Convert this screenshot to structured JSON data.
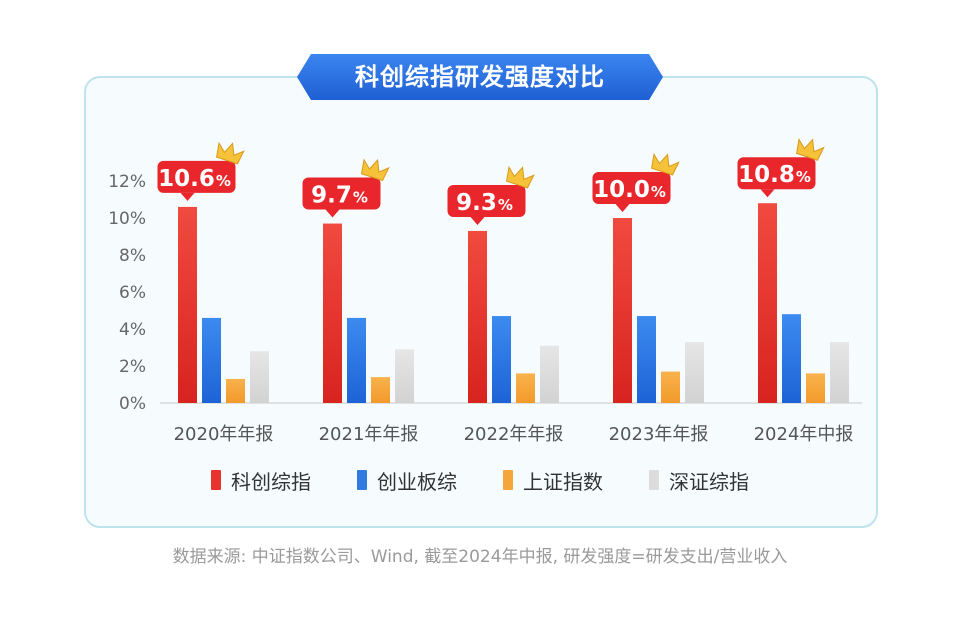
{
  "title": "科创综指研发强度对比",
  "source_note": "数据来源: 中证指数公司、Wind, 截至2024年中报, 研发强度=研发支出/营业收入",
  "colors": {
    "科创综指": "#e8342f",
    "创业板综": "#2f7be2",
    "上证指数": "#f5a53a",
    "深证综指": "#dcdcdc",
    "callout": "#e8262b",
    "title_bg": "#2a6fe0"
  },
  "chart_data": {
    "type": "bar",
    "categories": [
      "2020年年报",
      "2021年年报",
      "2022年年报",
      "2023年年报",
      "2024年中报"
    ],
    "series": [
      {
        "name": "科创综指",
        "values": [
          10.6,
          9.7,
          9.3,
          10.0,
          10.8
        ]
      },
      {
        "name": "创业板综",
        "values": [
          4.6,
          4.6,
          4.7,
          4.7,
          4.8
        ]
      },
      {
        "name": "上证指数",
        "values": [
          1.3,
          1.4,
          1.6,
          1.7,
          1.6
        ]
      },
      {
        "name": "深证综指",
        "values": [
          2.8,
          2.9,
          3.1,
          3.3,
          3.3
        ]
      }
    ],
    "callouts": [
      {
        "main": "10.6",
        "unit": "%"
      },
      {
        "main": "9.7",
        "unit": "%"
      },
      {
        "main": "9.3",
        "unit": "%"
      },
      {
        "main": "10.0",
        "unit": "%"
      },
      {
        "main": "10.8",
        "unit": "%"
      }
    ],
    "yticks": [
      "0%",
      "2%",
      "4%",
      "6%",
      "8%",
      "10%",
      "12%"
    ],
    "ylim": [
      0,
      12
    ],
    "legend_position": "bottom",
    "grid": false
  }
}
